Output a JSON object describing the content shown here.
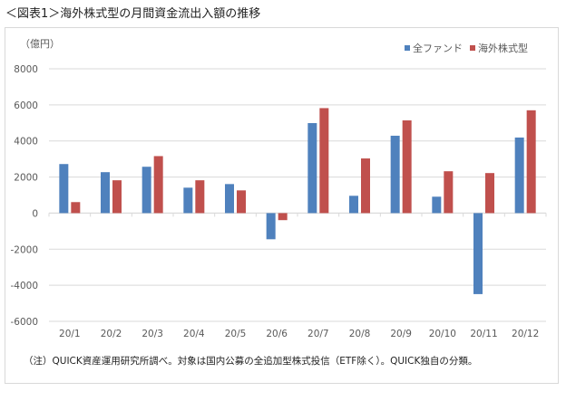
{
  "chart_data": {
    "type": "bar",
    "title": "＜図表1＞海外株式型の月間資金流出入額の推移",
    "ylabel": "（億円）",
    "xlabel": "",
    "ylim": [
      -6000,
      8000
    ],
    "yticks": [
      -6000,
      -4000,
      -2000,
      0,
      2000,
      4000,
      6000,
      8000
    ],
    "grid": true,
    "legend_position": "top-right",
    "categories": [
      "20/1",
      "20/2",
      "20/3",
      "20/4",
      "20/5",
      "20/6",
      "20/7",
      "20/8",
      "20/9",
      "20/10",
      "20/11",
      "20/12"
    ],
    "series": [
      {
        "name": "全ファンド",
        "color": "#4f81bd",
        "values": [
          2720,
          2270,
          2570,
          1410,
          1610,
          -1450,
          4990,
          960,
          4290,
          910,
          -4490,
          4190
        ]
      },
      {
        "name": "海外株式型",
        "color": "#c0504d",
        "values": [
          610,
          1820,
          3160,
          1820,
          1260,
          -390,
          5820,
          3030,
          5140,
          2320,
          2220,
          5700
        ]
      }
    ],
    "footnote": "（注）QUICK資産運用研究所調べ。対象は国内公募の全追加型株式投信（ETF除く）。QUICK独自の分類。"
  }
}
